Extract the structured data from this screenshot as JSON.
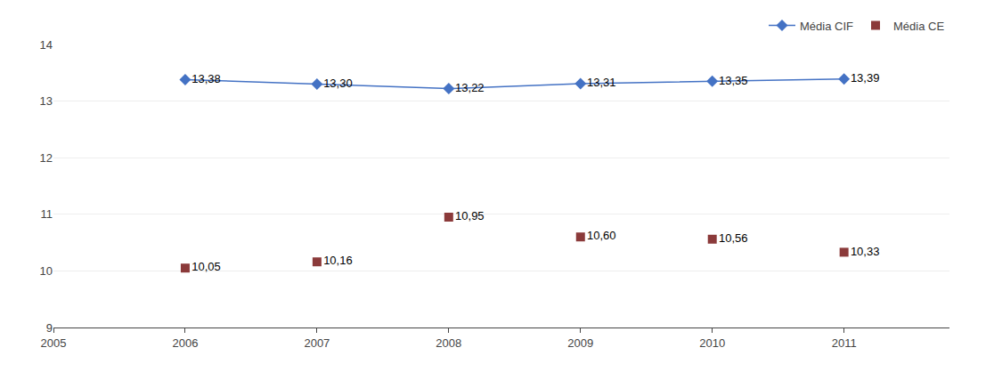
{
  "chart_data": {
    "type": "line",
    "x": [
      2006,
      2007,
      2008,
      2009,
      2010,
      2011
    ],
    "series": [
      {
        "name": "Média CIF",
        "type": "line",
        "marker": "diamond",
        "color": "#4472C4",
        "values": [
          13.38,
          13.3,
          13.22,
          13.31,
          13.35,
          13.39
        ],
        "value_labels": [
          "13,38",
          "13,30",
          "13,22",
          "13,31",
          "13,35",
          "13,39"
        ]
      },
      {
        "name": "Média CE",
        "type": "scatter",
        "marker": "square",
        "color": "#8B3A3A",
        "values": [
          10.05,
          10.16,
          10.95,
          10.6,
          10.56,
          10.33
        ],
        "value_labels": [
          "10,05",
          "10,16",
          "10,95",
          "10,60",
          "10,56",
          "10,33"
        ]
      }
    ],
    "xlim": [
      2005,
      2011.8
    ],
    "ylim": [
      9,
      14
    ],
    "xticks": [
      2005,
      2006,
      2007,
      2008,
      2009,
      2010,
      2011
    ],
    "yticks": [
      9,
      10,
      11,
      12,
      13,
      14
    ],
    "grid": "y",
    "legend": "upper right",
    "data_labels": true
  }
}
